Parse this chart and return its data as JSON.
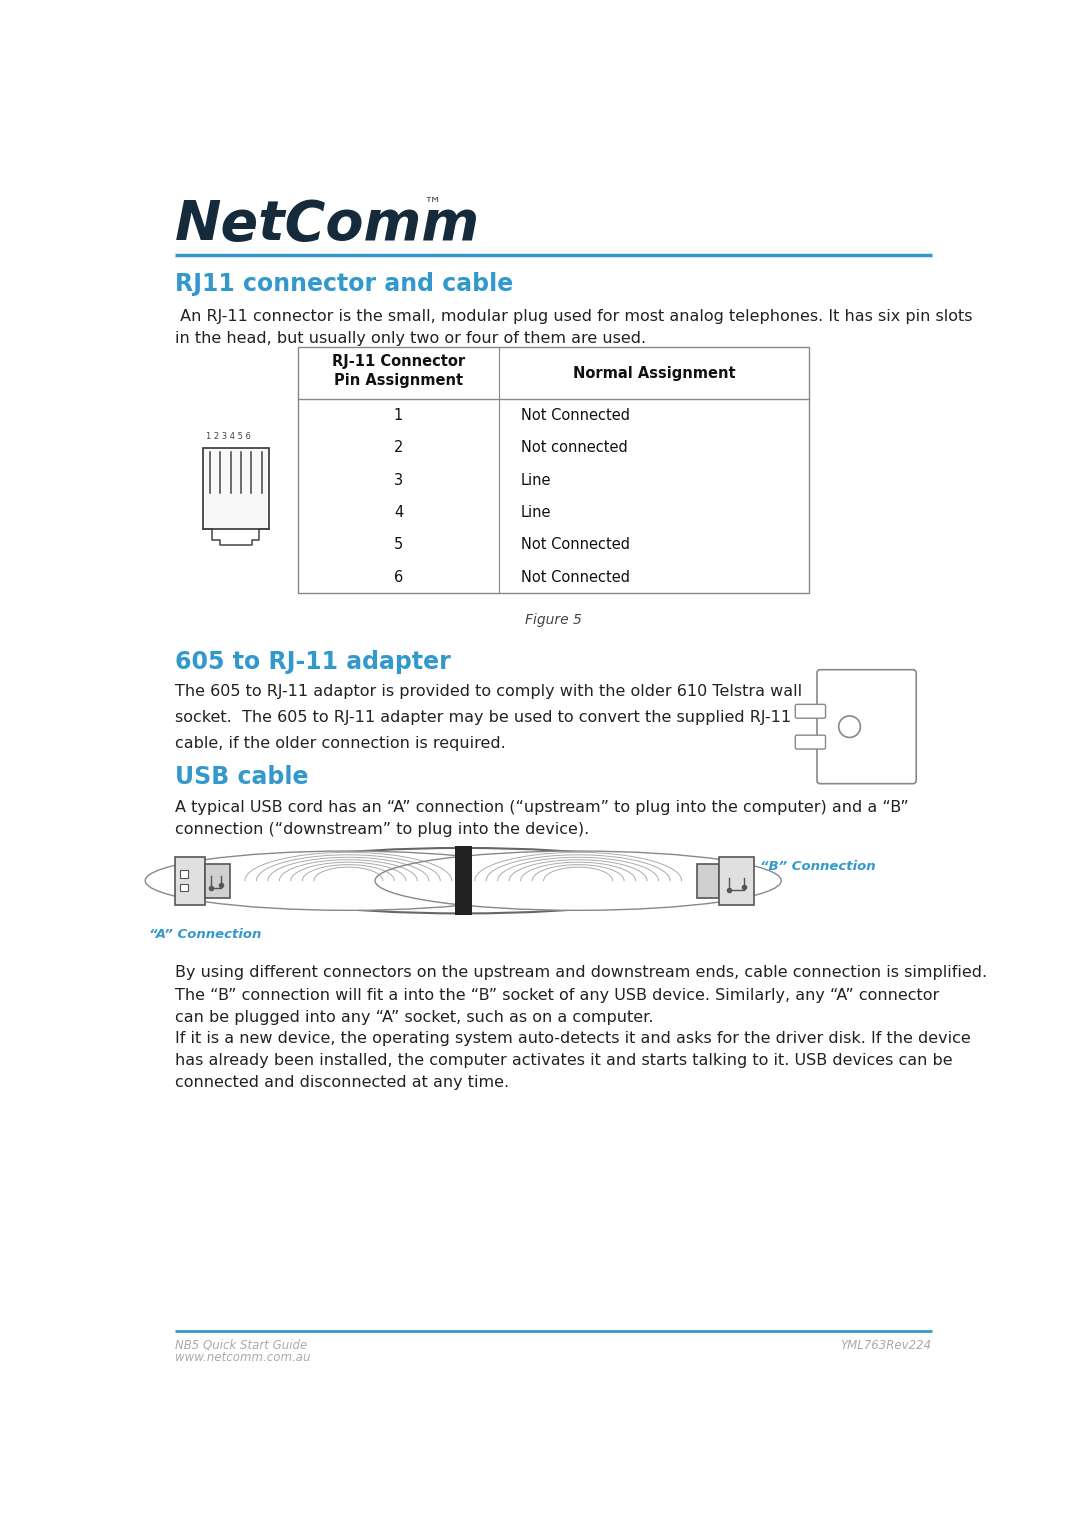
{
  "bg_color": "#ffffff",
  "header_logo_text": "NetComm",
  "header_tm": "™",
  "header_line_color": "#3399cc",
  "section1_title": "RJ11 connector and cable",
  "section1_title_color": "#3399cc",
  "section1_body": " An RJ-11 connector is the small, modular plug used for most analog telephones. It has six pin slots\nin the head, but usually only two or four of them are used.",
  "table_col1_header": "RJ-11 Connector\nPin Assignment",
  "table_col2_header": "Normal Assignment",
  "table_pins": [
    "1",
    "2",
    "3",
    "4",
    "5",
    "6"
  ],
  "table_assignments": [
    "Not Connected",
    "Not connected",
    "Line",
    "Line",
    "Not Connected",
    "Not Connected"
  ],
  "figure_caption": "Figure 5",
  "section2_title": "605 to RJ-11 adapter",
  "section2_title_color": "#3399cc",
  "section2_body": "The 605 to RJ-11 adaptor is provided to comply with the older 610 Telstra wall\nsocket.  The 605 to RJ-11 adapter may be used to convert the supplied RJ-11\ncable, if the older connection is required.",
  "section3_title": "USB cable",
  "section3_title_color": "#3399cc",
  "section3_body": "A typical USB cord has an “A” connection (“upstream” to plug into the computer) and a “B”\nconnection (“downstream” to plug into the device).",
  "usb_label_a": "“A” Connection",
  "usb_label_b": "“B” Connection",
  "usb_label_color": "#3399cc",
  "section3_body2": "By using different connectors on the upstream and downstream ends, cable connection is simplified.\nThe “B” connection will fit a into the “B” socket of any USB device. Similarly, any “A” connector\ncan be plugged into any “A” socket, such as on a computer.",
  "section3_body3": "If it is a new device, the operating system auto-detects it and asks for the driver disk. If the device\nhas already been installed, the computer activates it and starts talking to it. USB devices can be\nconnected and disconnected at any time.",
  "footer_left1": "NB5 Quick Start Guide",
  "footer_left2": "www.netcomm.com.au",
  "footer_right": "YML763Rev224",
  "footer_line_color": "#3399cc",
  "footer_text_color": "#aaaaaa",
  "body_text_color": "#222222",
  "body_font_size": 11.5,
  "section_title_font_size": 17
}
